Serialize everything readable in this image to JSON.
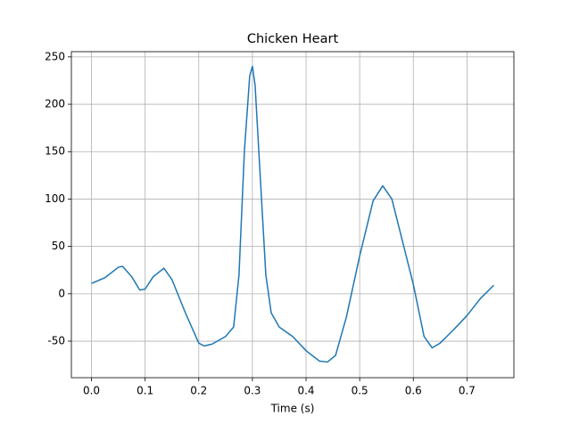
{
  "chart_data": {
    "type": "line",
    "title": "Chicken Heart",
    "x_label": "Time (s)",
    "x": [
      0,
      0.025,
      0.05,
      0.058,
      0.075,
      0.09,
      0.1,
      0.115,
      0.135,
      0.15,
      0.175,
      0.2,
      0.21,
      0.225,
      0.25,
      0.265,
      0.275,
      0.285,
      0.295,
      0.3,
      0.305,
      0.315,
      0.325,
      0.335,
      0.35,
      0.375,
      0.4,
      0.425,
      0.44,
      0.455,
      0.475,
      0.5,
      0.525,
      0.543,
      0.56,
      0.6,
      0.62,
      0.635,
      0.65,
      0.675,
      0.7,
      0.725,
      0.75
    ],
    "series": [
      {
        "color": "#1f77b4",
        "values": [
          11,
          17,
          28,
          29,
          18,
          4,
          5,
          18,
          27,
          15,
          -20,
          -52,
          -55,
          -53,
          -45,
          -35,
          20,
          150,
          230,
          240,
          220,
          120,
          20,
          -20,
          -35,
          -45,
          -60,
          -71,
          -72,
          -65,
          -25,
          40,
          98,
          114,
          100,
          10,
          -45,
          -57,
          -52,
          -38,
          -23,
          -5,
          9
        ]
      }
    ],
    "xlim": [
      -0.0375,
      0.7875
    ],
    "xticks": [
      {
        "value": 0,
        "label": "0.0"
      },
      0.1,
      0.2,
      0.3,
      0.4,
      0.5,
      0.6,
      0.7
    ],
    "ylim": [
      -88.5,
      255.5
    ],
    "yticks": [
      -50,
      0,
      50,
      100,
      150,
      200,
      250
    ],
    "grid": true
  }
}
